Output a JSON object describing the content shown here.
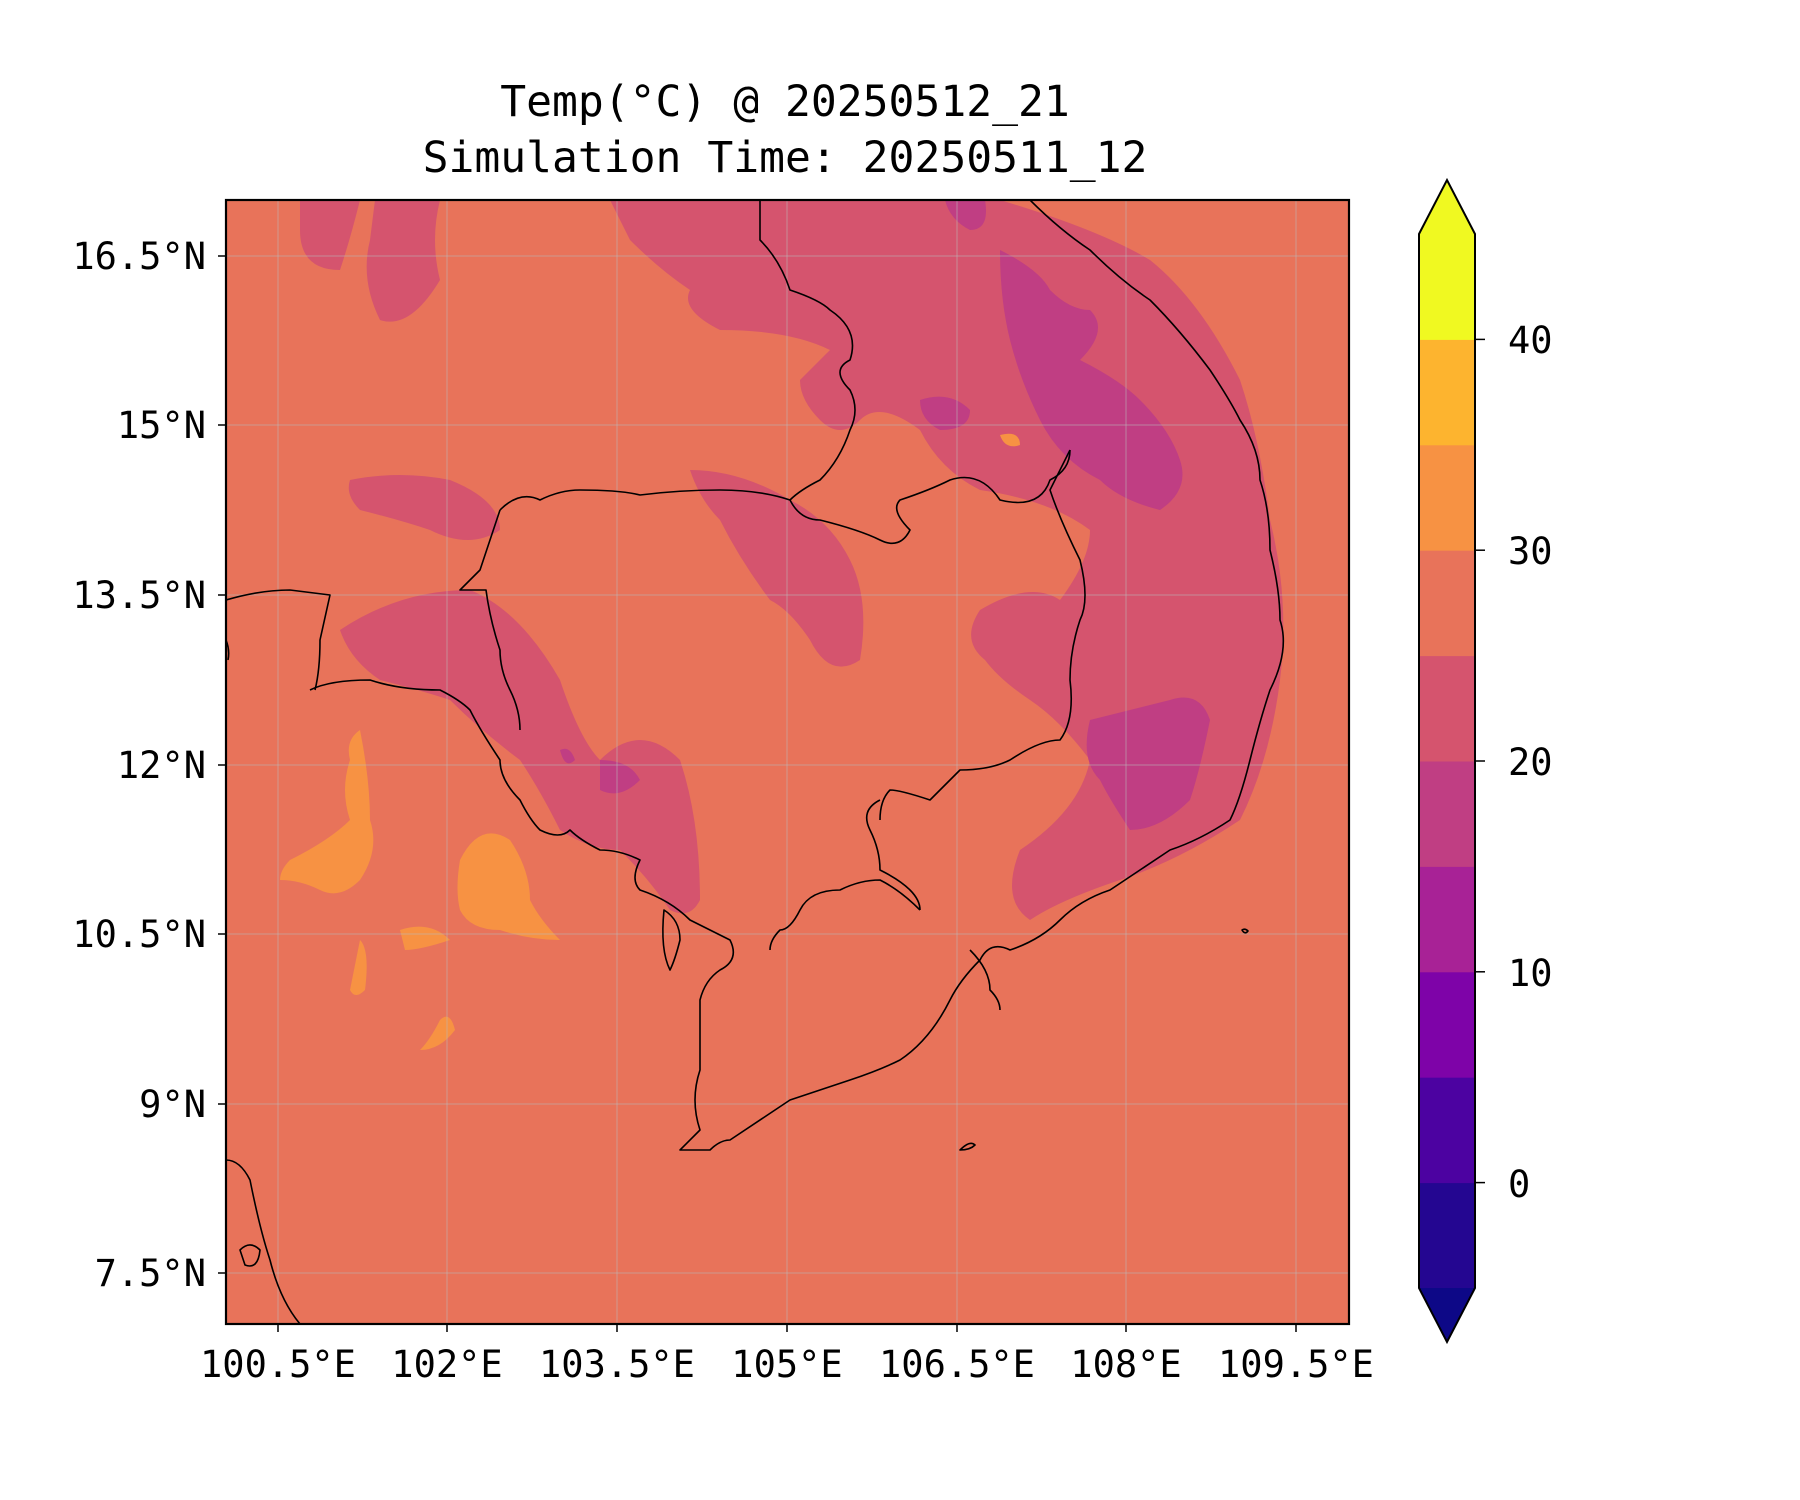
{
  "title": {
    "line1": "Temp(°C) @ 20250512_21",
    "line2": "Simulation Time: 20250511_12"
  },
  "map": {
    "region": "Indochina (Cambodia / southern Vietnam / Gulf of Thailand)",
    "base_field_color": "#e8735a",
    "x_ticks": [
      "100.5°E",
      "102°E",
      "103.5°E",
      "105°E",
      "106.5°E",
      "108°E",
      "109.5°E"
    ],
    "y_ticks": [
      "16.5°N",
      "15°N",
      "13.5°N",
      "12°N",
      "10.5°N",
      "9°N",
      "7.5°N"
    ],
    "gridlines": true
  },
  "colorbar": {
    "ticks": [
      "40",
      "30",
      "20",
      "10",
      "0"
    ],
    "extend": "both",
    "levels": [
      -5,
      0,
      5,
      10,
      15,
      20,
      25,
      30,
      35,
      40,
      45
    ],
    "colors": [
      "#0d0887",
      "#240691",
      "#4c02a1",
      "#7e03a8",
      "#a82296",
      "#c03e83",
      "#d5546e",
      "#e8735a",
      "#f79243",
      "#fdb42f",
      "#f0f921"
    ]
  }
}
